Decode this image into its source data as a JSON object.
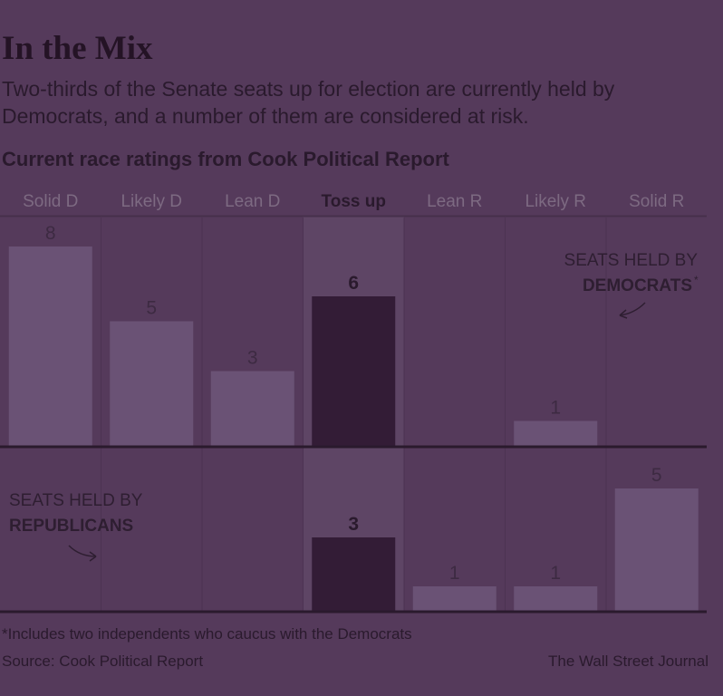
{
  "title": "In the Mix",
  "subtitle": "Two-thirds of the Senate seats up for election are currently held by Democrats, and a number of them are considered at risk.",
  "chart_heading": "Current race ratings from Cook Political Report",
  "footnote": "*Includes two independents who caucus with the Democrats",
  "source": "Source: Cook Political Report",
  "credit": "The Wall Street Journal",
  "colors": {
    "background": "#553a5b",
    "highlight_column": "#5e4565",
    "bar_dark": "#331c36",
    "bar_light": "#6a5275",
    "axis": "#2a1a2d",
    "text_dark": "#2a1a2d",
    "text_muted": "#7d6a82"
  },
  "chart_data": {
    "type": "bar",
    "categories": [
      "Solid D",
      "Likely D",
      "Lean D",
      "Toss up",
      "Lean R",
      "Likely R",
      "Solid R"
    ],
    "highlight_category": "Toss up",
    "series": [
      {
        "name": "SEATS HELD BY DEMOCRATS*",
        "label_line1": "SEATS HELD BY",
        "label_line2": "DEMOCRATS",
        "label_mark": "*",
        "values": [
          8,
          5,
          3,
          6,
          0,
          1,
          0
        ],
        "data_labels": [
          "8",
          "5",
          "3",
          "6",
          "",
          "1",
          ""
        ]
      },
      {
        "name": "SEATS HELD BY REPUBLICANS",
        "label_line1": "SEATS HELD BY",
        "label_line2": "REPUBLICANS",
        "values": [
          0,
          0,
          0,
          3,
          1,
          1,
          5
        ],
        "data_labels": [
          "",
          "",
          "",
          "3",
          "1",
          "1",
          "5"
        ]
      }
    ],
    "xlabel": "",
    "ylabel": "",
    "grid": false,
    "legend": "inline"
  }
}
